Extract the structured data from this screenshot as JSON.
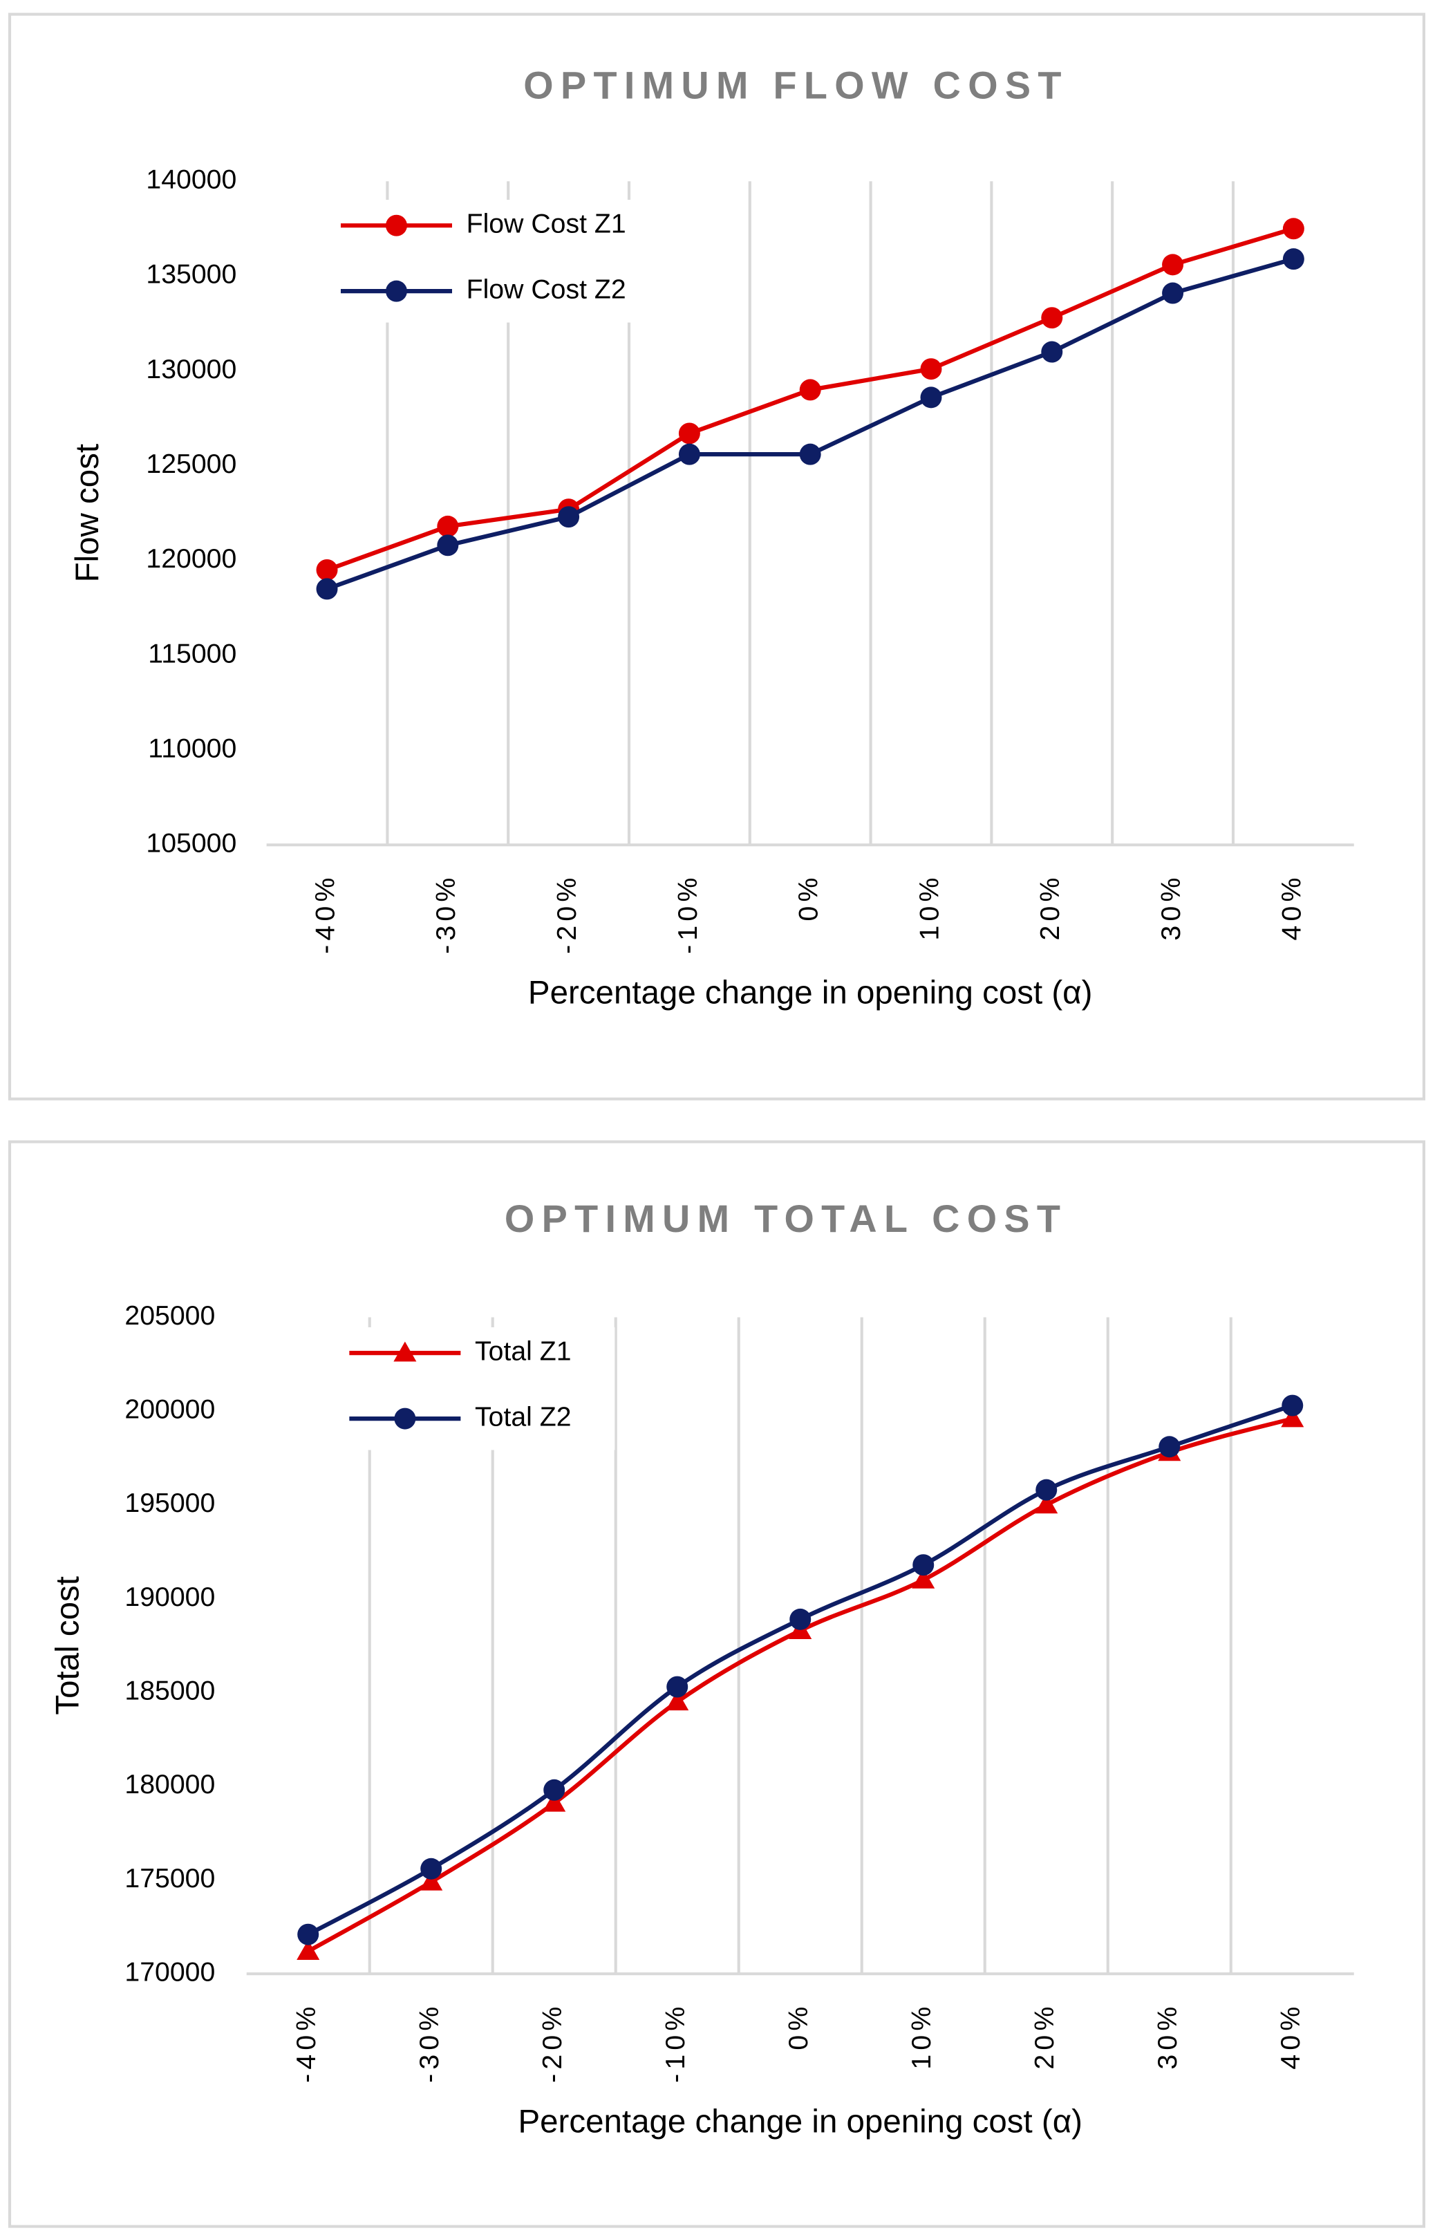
{
  "chart_data": [
    {
      "type": "line",
      "title": "OPTIMUM FLOW COST",
      "x_label": "Percentage change in opening cost (α)",
      "y_label": "Flow cost",
      "categories": [
        "-40%",
        "-30%",
        "-20%",
        "-10%",
        "0%",
        "10%",
        "20%",
        "30%",
        "40%"
      ],
      "series": [
        {
          "name": "Flow Cost Z1",
          "color": "#e00000",
          "marker": "circle",
          "values": [
            119500,
            121800,
            122700,
            126700,
            129000,
            130100,
            132800,
            135600,
            137500
          ]
        },
        {
          "name": "Flow Cost Z2",
          "color": "#0e1e64",
          "marker": "circle",
          "values": [
            118500,
            120800,
            122300,
            125600,
            125600,
            128600,
            131000,
            134100,
            135900
          ]
        }
      ],
      "ylim": [
        105000,
        140000
      ],
      "yticks": [
        105000,
        110000,
        115000,
        120000,
        125000,
        130000,
        135000,
        140000
      ],
      "grid": true,
      "smooth": false,
      "legend": "upper left"
    },
    {
      "type": "line",
      "title": "OPTIMUM TOTAL COST",
      "x_label": "Percentage change in opening cost (α)",
      "y_label": "Total cost",
      "categories": [
        "-40%",
        "-30%",
        "-20%",
        "-10%",
        "0%",
        "10%",
        "20%",
        "30%",
        "40%"
      ],
      "series": [
        {
          "name": "Total Z1",
          "color": "#e00000",
          "marker": "triangle",
          "values": [
            171200,
            174900,
            179100,
            184500,
            188300,
            191000,
            195000,
            197800,
            199600
          ]
        },
        {
          "name": "Total Z2",
          "color": "#0e1e64",
          "marker": "circle",
          "values": [
            172100,
            175600,
            179800,
            185300,
            188900,
            191800,
            195800,
            198100,
            200300
          ]
        }
      ],
      "ylim": [
        170000,
        205000
      ],
      "yticks": [
        170000,
        175000,
        180000,
        185000,
        190000,
        195000,
        200000,
        205000
      ],
      "grid": true,
      "smooth": true,
      "legend": "upper left"
    }
  ]
}
